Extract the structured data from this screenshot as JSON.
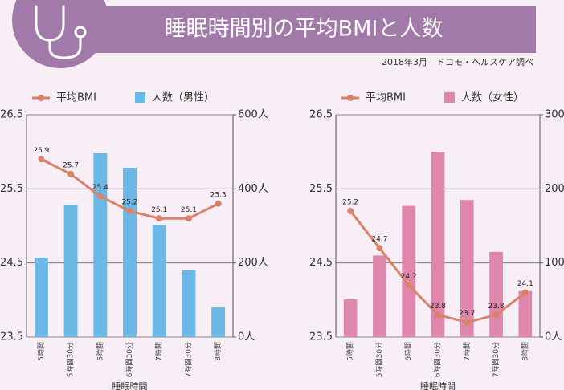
{
  "header": {
    "title": "睡眠時間別の平均BMIと人数",
    "source": "2018年3月　ドコモ・ヘルスケア調べ"
  },
  "chart_data": [
    {
      "type": "bar_line",
      "xlabel": "睡眠時間",
      "categories": [
        "5時間",
        "5時間30分",
        "6時間",
        "6時間30分",
        "7時間",
        "7時間30分",
        "8時間"
      ],
      "series": [
        {
          "name": "平均BMI",
          "color": "#d9826a",
          "values": [
            25.9,
            25.7,
            25.4,
            25.2,
            25.1,
            25.1,
            25.3
          ]
        },
        {
          "name": "人数（男性）",
          "color": "#6bb8e6",
          "axis": "y2",
          "values": [
            214,
            357,
            496,
            457,
            303,
            180,
            80
          ]
        }
      ],
      "ylim": [
        23.5,
        26.5
      ],
      "yticks": [
        23.5,
        24.5,
        25.5,
        26.5
      ],
      "y2lim": [
        0,
        600
      ],
      "y2ticks": [
        {
          "value": 0,
          "label": "0人"
        },
        {
          "value": 200,
          "label": "200人"
        },
        {
          "value": 400,
          "label": "400人"
        },
        {
          "value": 600,
          "label": "600人"
        }
      ],
      "grid": true
    },
    {
      "type": "bar_line",
      "xlabel": "睡眠時間",
      "categories": [
        "5時間",
        "5時間30分",
        "6時間",
        "6時間30分",
        "7時間",
        "7時間30分",
        "8時間"
      ],
      "series": [
        {
          "name": "平均BMI",
          "color": "#d9826a",
          "values": [
            25.2,
            24.7,
            24.2,
            23.8,
            23.7,
            23.8,
            24.1
          ]
        },
        {
          "name": "人数（女性）",
          "color": "#df86ad",
          "axis": "y2",
          "values": [
            51,
            110,
            177,
            250,
            185,
            115,
            62
          ]
        }
      ],
      "ylim": [
        23.5,
        26.5
      ],
      "yticks": [
        23.5,
        24.5,
        25.5,
        26.5
      ],
      "y2lim": [
        0,
        300
      ],
      "y2ticks": [
        {
          "value": 0,
          "label": "0人"
        },
        {
          "value": 100,
          "label": "100人"
        },
        {
          "value": 200,
          "label": "200人"
        },
        {
          "value": 300,
          "label": "300人"
        }
      ],
      "grid": true
    }
  ]
}
